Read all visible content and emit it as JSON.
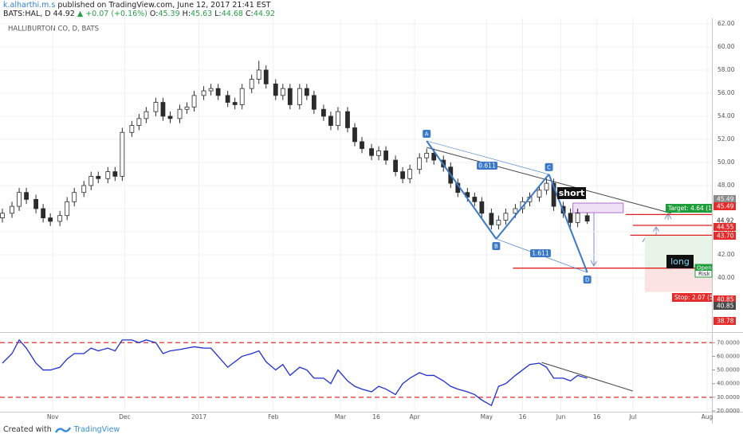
{
  "header": {
    "author": "k.alharthi.m.s",
    "published": "published on TradingView.com, June 12, 2017 21:41 EST",
    "symbol": "BATS:HAL, D",
    "last": "44.92",
    "change": "▲ +0.07 (+0.16%)",
    "o_label": "O:",
    "o": "45.39",
    "h_label": "H:",
    "h": "45.63",
    "l_label": "L:",
    "l": "44.68",
    "c_label": "C:",
    "c": "44.92"
  },
  "footer": {
    "created": "Created with",
    "brand": "TradingView"
  },
  "chart_data": [
    {
      "type": "candlestick",
      "title": "HALLIBURTON CO, D, BATS",
      "x": [
        10,
        14,
        17,
        20,
        24,
        27,
        30,
        34,
        37,
        40,
        44,
        47,
        50,
        54,
        57,
        60,
        64,
        67,
        70,
        74,
        77,
        80,
        84,
        87,
        90,
        94,
        97,
        100,
        104,
        107,
        110,
        114,
        117,
        120,
        124,
        127,
        130,
        134,
        137,
        140,
        144,
        147,
        150,
        154,
        157,
        160,
        164,
        167,
        170,
        174,
        177,
        180,
        184,
        187,
        190,
        194,
        197,
        200,
        204,
        207,
        210,
        214,
        217,
        220,
        224,
        227,
        230,
        234,
        237,
        240,
        244,
        247,
        250,
        254
      ],
      "open": [
        45.2,
        45.6,
        46.2,
        47.4,
        46.8,
        46.0,
        45.2,
        44.9,
        45.4,
        46.6,
        47.4,
        48.0,
        48.8,
        48.6,
        49.2,
        48.8,
        52.6,
        53.2,
        53.8,
        54.4,
        55.2,
        54.0,
        53.8,
        54.6,
        54.8,
        55.8,
        56.2,
        56.4,
        55.8,
        55.2,
        55.0,
        56.4,
        57.2,
        58.0,
        56.8,
        55.8,
        56.4,
        55.0,
        56.4,
        55.8,
        54.6,
        54.0,
        53.2,
        54.4,
        53.0,
        51.8,
        51.2,
        50.6,
        51.0,
        50.2,
        49.2,
        48.6,
        49.4,
        50.4,
        50.8,
        50.2,
        49.6,
        48.2,
        47.4,
        47.0,
        46.6,
        45.6,
        44.6,
        45.0,
        45.6,
        46.0,
        46.6,
        47.0,
        47.6,
        48.2,
        46.2,
        45.6,
        44.8,
        45.39
      ],
      "high": [
        46.0,
        46.6,
        47.8,
        47.8,
        47.2,
        46.4,
        45.6,
        45.8,
        47.0,
        47.8,
        48.4,
        49.2,
        49.2,
        49.6,
        49.6,
        53.0,
        53.6,
        54.2,
        54.8,
        55.6,
        55.6,
        54.4,
        55.0,
        55.2,
        56.2,
        56.6,
        56.8,
        56.8,
        56.2,
        55.6,
        56.8,
        57.6,
        58.8,
        58.4,
        57.2,
        56.8,
        56.8,
        56.8,
        56.8,
        56.2,
        55.0,
        54.4,
        54.8,
        54.8,
        53.4,
        52.2,
        51.6,
        51.4,
        51.4,
        50.6,
        49.6,
        49.8,
        50.8,
        51.2,
        51.2,
        50.6,
        50.0,
        48.6,
        47.8,
        47.4,
        47.0,
        46.0,
        45.4,
        46.0,
        46.4,
        47.0,
        47.4,
        48.0,
        48.6,
        48.6,
        46.6,
        46.0,
        46.0,
        45.63
      ],
      "low": [
        44.8,
        45.2,
        45.8,
        46.4,
        45.6,
        44.8,
        44.5,
        44.5,
        45.0,
        46.2,
        47.0,
        47.6,
        48.2,
        48.2,
        48.4,
        48.4,
        52.2,
        52.8,
        53.4,
        54.0,
        53.6,
        53.4,
        53.4,
        54.2,
        54.4,
        55.4,
        55.8,
        55.4,
        54.8,
        54.6,
        54.6,
        56.0,
        56.8,
        56.4,
        55.4,
        55.4,
        54.6,
        54.6,
        55.4,
        54.2,
        53.6,
        52.8,
        52.8,
        52.6,
        51.4,
        50.8,
        50.2,
        50.2,
        49.8,
        48.8,
        48.2,
        48.2,
        49.0,
        50.0,
        49.8,
        49.2,
        47.8,
        47.0,
        46.6,
        46.2,
        45.2,
        44.2,
        44.2,
        44.6,
        45.2,
        45.6,
        46.2,
        46.6,
        47.2,
        45.8,
        45.2,
        44.4,
        44.4,
        44.68
      ],
      "close": [
        45.6,
        46.2,
        47.4,
        46.8,
        46.0,
        45.2,
        44.9,
        45.4,
        46.6,
        47.4,
        48.0,
        48.8,
        48.6,
        49.2,
        48.8,
        52.6,
        53.2,
        53.8,
        54.4,
        55.2,
        54.0,
        53.8,
        54.6,
        54.8,
        55.8,
        56.2,
        56.4,
        55.8,
        55.2,
        55.0,
        56.4,
        57.2,
        58.0,
        56.8,
        55.8,
        56.4,
        55.0,
        56.4,
        55.8,
        54.6,
        54.0,
        53.2,
        54.4,
        53.0,
        51.8,
        51.2,
        50.6,
        51.0,
        50.2,
        49.2,
        48.6,
        49.4,
        50.4,
        50.8,
        50.2,
        49.6,
        48.2,
        47.4,
        47.0,
        46.6,
        45.6,
        44.6,
        45.0,
        45.6,
        46.0,
        46.6,
        47.0,
        47.6,
        48.2,
        46.2,
        45.6,
        44.8,
        45.6,
        44.92
      ],
      "up_color": "#ffffff",
      "down_color": "#2b2b2b",
      "wick_color": "#2b2b2b",
      "xlim": [
        9,
        306
      ],
      "xticks": [
        {
          "value": 31,
          "label": "Nov"
        },
        {
          "value": 61,
          "label": "Dec"
        },
        {
          "value": 92,
          "label": "2017"
        },
        {
          "value": 123,
          "label": "Feb"
        },
        {
          "value": 151,
          "label": "Mar"
        },
        {
          "value": 166,
          "label": "16"
        },
        {
          "value": 182,
          "label": "Apr"
        },
        {
          "value": 212,
          "label": "May"
        },
        {
          "value": 227,
          "label": "16"
        },
        {
          "value": 243,
          "label": "Jun"
        },
        {
          "value": 258,
          "label": "16"
        },
        {
          "value": 273,
          "label": "Jul"
        },
        {
          "value": 304,
          "label": "Aug"
        }
      ],
      "ylim": [
        35.45,
        62.34
      ],
      "yticks": [
        {
          "value": 40,
          "label": "40.00"
        },
        {
          "value": 42,
          "label": "42.00"
        },
        {
          "value": 44,
          "label": "44.00"
        },
        {
          "value": 46,
          "label": "46.00"
        },
        {
          "value": 48,
          "label": "48.00"
        },
        {
          "value": 50,
          "label": "50.00"
        },
        {
          "value": 52,
          "label": "52.00"
        },
        {
          "value": 54,
          "label": "54.00"
        },
        {
          "value": 56,
          "label": "56.00"
        },
        {
          "value": 58,
          "label": "58.00"
        },
        {
          "value": 60,
          "label": "60.00"
        },
        {
          "value": 62,
          "label": "62.00"
        }
      ],
      "grid": true,
      "price_badges": [
        {
          "label": "45.49",
          "color": "#8a8a8a"
        },
        {
          "label": "45.49",
          "color": "#e52b2b"
        },
        {
          "label": "44.92",
          "color": "#ffffff"
        },
        {
          "label": "44.55",
          "color": "#e52b2b"
        },
        {
          "label": "43.70",
          "color": "#e52b2b"
        },
        {
          "label": "40.85",
          "color": "#e52b2b"
        },
        {
          "label": "40.85",
          "color": "#4a4a4a"
        },
        {
          "label": "38.78",
          "color": "#e52b2b"
        }
      ],
      "pattern": {
        "color": "#3a78c8",
        "points": [
          {
            "label": "A",
            "x": 187,
            "y": 51.86
          },
          {
            "label": "B",
            "x": 216,
            "y": 43.38
          },
          {
            "label": "C",
            "x": 238,
            "y": 48.97
          },
          {
            "label": "D",
            "x": 254,
            "y": 40.48
          }
        ],
        "ratios": [
          "0.611",
          "1.611"
        ]
      },
      "trendline": {
        "x": [
          187,
          289
        ],
        "y": [
          51.3,
          45.6
        ]
      },
      "levels": [
        {
          "value": 45.49,
          "x": [
            270,
            306
          ]
        },
        {
          "value": 44.55,
          "x": [
            273,
            306
          ]
        },
        {
          "value": 43.7,
          "x": [
            272,
            306
          ]
        },
        {
          "value": 40.85,
          "x": [
            223,
            306
          ]
        }
      ],
      "short_zone": {
        "label": "short",
        "x": [
          248,
          269
        ],
        "y": [
          45.65,
          46.48
        ]
      },
      "long_position": {
        "label": "long",
        "x": [
          278,
          306
        ],
        "entry": 40.85,
        "target": 43.7,
        "stop": 38.78,
        "target_label": "Target: 4.64 (1",
        "stop_label": "Stop: 2.07 (5",
        "open_label": "Open",
        "risk_label": "Risk"
      }
    },
    {
      "type": "line",
      "x": [
        10,
        14,
        17,
        20,
        24,
        27,
        30,
        34,
        37,
        40,
        44,
        47,
        50,
        54,
        57,
        60,
        64,
        67,
        70,
        74,
        77,
        80,
        84,
        87,
        90,
        94,
        97,
        100,
        104,
        107,
        110,
        114,
        117,
        120,
        124,
        127,
        130,
        134,
        137,
        140,
        144,
        147,
        150,
        154,
        157,
        160,
        164,
        167,
        170,
        174,
        177,
        180,
        184,
        187,
        190,
        194,
        197,
        200,
        204,
        207,
        210,
        214,
        217,
        220,
        224,
        227,
        230,
        234,
        237,
        240,
        244,
        247,
        250,
        254
      ],
      "series": [
        {
          "color": "#1f2fd0",
          "values": [
            55,
            62,
            72,
            66,
            55,
            50,
            50,
            52,
            58,
            62,
            62,
            66,
            64,
            66,
            64,
            72,
            72,
            70,
            72,
            70,
            62,
            64,
            65,
            66,
            67,
            66,
            66,
            60,
            52,
            56,
            60,
            62,
            64,
            56,
            50,
            54,
            46,
            52,
            50,
            44,
            44,
            40,
            50,
            42,
            38,
            36,
            34,
            38,
            36,
            32,
            40,
            44,
            48,
            46,
            46,
            42,
            38,
            36,
            34,
            32,
            28,
            24,
            38,
            40,
            46,
            50,
            54,
            55,
            52,
            44,
            44,
            42,
            46,
            44
          ]
        }
      ],
      "xlim": [
        9,
        306
      ],
      "ylim": [
        20,
        76
      ],
      "yticks": [
        {
          "value": 20,
          "label": "20.0000"
        },
        {
          "value": 30,
          "label": "30.0000"
        },
        {
          "value": 40,
          "label": "40.0000"
        },
        {
          "value": 50,
          "label": "50.0000"
        },
        {
          "value": 60,
          "label": "60.0000"
        },
        {
          "value": 70,
          "label": "70.0000"
        }
      ],
      "levels": [
        70,
        30
      ],
      "level_color": "#e03030",
      "trendline": {
        "x": [
          235,
          273
        ],
        "y": [
          55.5,
          34.6
        ]
      }
    }
  ]
}
